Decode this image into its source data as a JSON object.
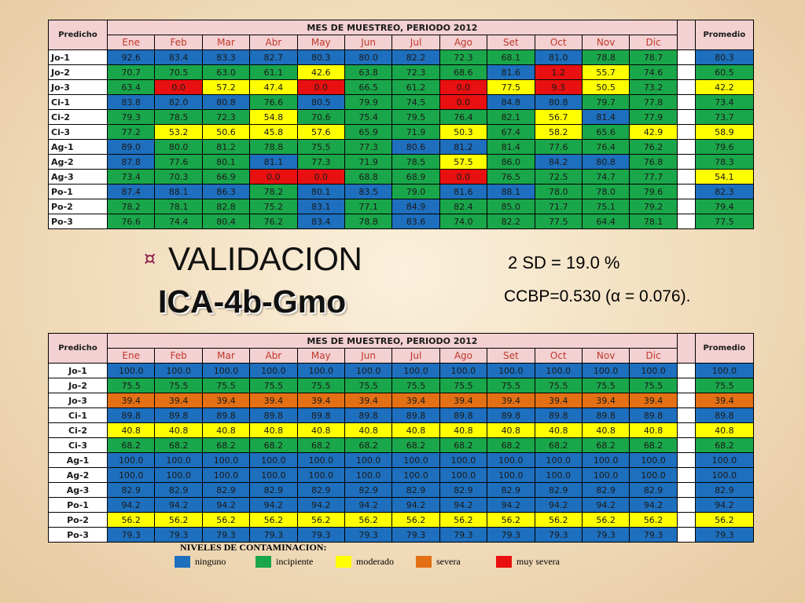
{
  "months": [
    "Ene",
    "Feb",
    "Mar",
    "Abr",
    "May",
    "Jun",
    "Jul",
    "Ago",
    "Set",
    "Oct",
    "Nov",
    "Dic"
  ],
  "table1": {
    "corner_label": "Predicho",
    "period_title": "MES DE MUESTREO, PERIODO 2012",
    "average_label": "Promedio",
    "rows": [
      {
        "name": "Jo-1",
        "values": [
          "92.6",
          "83.4",
          "83.3",
          "82.7",
          "80.3",
          "80.0",
          "82.2",
          "72.3",
          "68.1",
          "81.0",
          "78.8",
          "78.7"
        ],
        "colors": [
          "b",
          "b",
          "b",
          "b",
          "b",
          "b",
          "b",
          "g",
          "g",
          "b",
          "g",
          "g"
        ],
        "avg": "80.3",
        "avg_color": "b"
      },
      {
        "name": "Jo-2",
        "values": [
          "70.7",
          "70.5",
          "63.0",
          "61.1",
          "42.6",
          "63.8",
          "72.3",
          "68.6",
          "81.6",
          "1.2",
          "55.7",
          "74.6"
        ],
        "colors": [
          "g",
          "g",
          "g",
          "g",
          "y",
          "g",
          "g",
          "g",
          "b",
          "r",
          "y",
          "g"
        ],
        "avg": "60.5",
        "avg_color": "g"
      },
      {
        "name": "Jo-3",
        "values": [
          "63.4",
          "0.0",
          "57.2",
          "47.4",
          "0.0",
          "66.5",
          "61.2",
          "0.0",
          "77.5",
          "9.3",
          "50.5",
          "73.2"
        ],
        "colors": [
          "g",
          "r",
          "y",
          "y",
          "r",
          "g",
          "g",
          "r",
          "y",
          "r",
          "y",
          "g"
        ],
        "avg": "42.2",
        "avg_color": "y"
      },
      {
        "name": "Ci-1",
        "values": [
          "83.8",
          "82.0",
          "80.8",
          "76.6",
          "80.5",
          "79.9",
          "74.5",
          "0.0",
          "84.8",
          "80.8",
          "79.7",
          "77.8"
        ],
        "colors": [
          "b",
          "b",
          "b",
          "g",
          "b",
          "g",
          "g",
          "r",
          "b",
          "b",
          "g",
          "g"
        ],
        "avg": "73.4",
        "avg_color": "g"
      },
      {
        "name": "Ci-2",
        "values": [
          "79.3",
          "78.5",
          "72.3",
          "54.8",
          "70.6",
          "75.4",
          "79.5",
          "76.4",
          "82.1",
          "56.7",
          "81.4",
          "77.9"
        ],
        "colors": [
          "g",
          "g",
          "g",
          "y",
          "g",
          "g",
          "g",
          "g",
          "g",
          "y",
          "b",
          "g"
        ],
        "avg": "73.7",
        "avg_color": "g"
      },
      {
        "name": "Ci-3",
        "values": [
          "77.2",
          "53.2",
          "50.6",
          "45.8",
          "57.6",
          "65.9",
          "71.9",
          "50.3",
          "67.4",
          "58.2",
          "65.6",
          "42.9"
        ],
        "colors": [
          "g",
          "y",
          "y",
          "y",
          "y",
          "g",
          "g",
          "y",
          "g",
          "y",
          "g",
          "y"
        ],
        "avg": "58.9",
        "avg_color": "y"
      },
      {
        "name": "Ag-1",
        "values": [
          "89.0",
          "80.0",
          "81.2",
          "78.8",
          "75.5",
          "77.3",
          "80.6",
          "81.2",
          "81.4",
          "77.6",
          "76.4",
          "76.2"
        ],
        "colors": [
          "b",
          "g",
          "g",
          "g",
          "g",
          "g",
          "b",
          "b",
          "g",
          "g",
          "g",
          "g"
        ],
        "avg": "79.6",
        "avg_color": "g"
      },
      {
        "name": "Ag-2",
        "values": [
          "87.8",
          "77.6",
          "80.1",
          "81.1",
          "77.3",
          "71.9",
          "78.5",
          "57.5",
          "86.0",
          "84.2",
          "80.8",
          "76.8"
        ],
        "colors": [
          "b",
          "g",
          "g",
          "b",
          "g",
          "g",
          "g",
          "y",
          "g",
          "b",
          "b",
          "g"
        ],
        "avg": "78.3",
        "avg_color": "g"
      },
      {
        "name": "Ag-3",
        "values": [
          "73.4",
          "70.3",
          "66.9",
          "0.0",
          "0.0",
          "68.8",
          "68.9",
          "0.0",
          "76.5",
          "72.5",
          "74.7",
          "77.7"
        ],
        "colors": [
          "g",
          "g",
          "g",
          "r",
          "r",
          "g",
          "g",
          "r",
          "g",
          "g",
          "g",
          "g"
        ],
        "avg": "54.1",
        "avg_color": "y"
      },
      {
        "name": "Po-1",
        "values": [
          "87.4",
          "88.1",
          "86.3",
          "78.2",
          "80.1",
          "83.5",
          "79.0",
          "81.6",
          "88.1",
          "78.0",
          "78.0",
          "79.6"
        ],
        "colors": [
          "b",
          "b",
          "b",
          "g",
          "b",
          "b",
          "g",
          "b",
          "b",
          "g",
          "g",
          "g"
        ],
        "avg": "82.3",
        "avg_color": "b"
      },
      {
        "name": "Po-2",
        "values": [
          "78.2",
          "78.1",
          "82.8",
          "75.2",
          "83.1",
          "77.1",
          "84.9",
          "82.4",
          "85.0",
          "71.7",
          "75.1",
          "79.2"
        ],
        "colors": [
          "g",
          "g",
          "g",
          "g",
          "b",
          "g",
          "b",
          "g",
          "g",
          "g",
          "g",
          "g"
        ],
        "avg": "79.4",
        "avg_color": "g"
      },
      {
        "name": "Po-3",
        "values": [
          "76.6",
          "74.4",
          "80.4",
          "76.2",
          "83.4",
          "78.8",
          "83.6",
          "74.0",
          "82.2",
          "77.5",
          "64.4",
          "78.1"
        ],
        "colors": [
          "g",
          "g",
          "g",
          "g",
          "b",
          "g",
          "b",
          "g",
          "g",
          "g",
          "g",
          "g"
        ],
        "avg": "77.5",
        "avg_color": "g"
      }
    ]
  },
  "middle": {
    "bullet": "¤",
    "title": "VALIDACION",
    "subtitle": "ICA-4b-Gmo",
    "sd_text": "2 SD = 19.0 %",
    "ccbp_text": "CCBP=0.530 (α = 0.076)."
  },
  "table2": {
    "corner_label": "Predicho",
    "period_title": "MES DE MUESTREO, PERIODO 2012",
    "average_label": "Promedio",
    "rows": [
      {
        "name": "Jo-1",
        "value": "100.0",
        "color": "b"
      },
      {
        "name": "Jo-2",
        "value": "75.5",
        "color": "g"
      },
      {
        "name": "Jo-3",
        "value": "39.4",
        "color": "o"
      },
      {
        "name": "Ci-1",
        "value": "89.8",
        "color": "b"
      },
      {
        "name": "Ci-2",
        "value": "40.8",
        "color": "y"
      },
      {
        "name": "Ci-3",
        "value": "68.2",
        "color": "g"
      },
      {
        "name": "Ag-1",
        "value": "100.0",
        "color": "b"
      },
      {
        "name": "Ag-2",
        "value": "100.0",
        "color": "b"
      },
      {
        "name": "Ag-3",
        "value": "82.9",
        "color": "b"
      },
      {
        "name": "Po-1",
        "value": "94.2",
        "color": "b"
      },
      {
        "name": "Po-2",
        "value": "56.2",
        "color": "y"
      },
      {
        "name": "Po-3",
        "value": "79.3",
        "color": "b"
      }
    ]
  },
  "legend": {
    "title": "NIVELES DE CONTAMINACION:",
    "items": [
      {
        "label": "ninguno",
        "color": "#1e6fbd"
      },
      {
        "label": "incipiente",
        "color": "#1aa64a"
      },
      {
        "label": "moderado",
        "color": "#ffff00"
      },
      {
        "label": "severa",
        "color": "#e37014"
      },
      {
        "label": "muy severa",
        "color": "#e81010"
      }
    ]
  }
}
